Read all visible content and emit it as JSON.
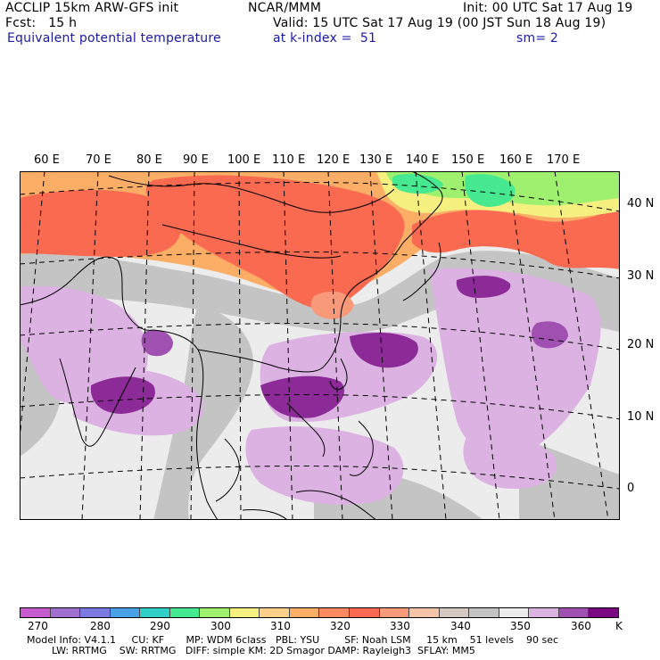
{
  "header": {
    "left_line1": "ACCLIP 15km ARW-GFS init",
    "left_line2": "Fcst:   15 h",
    "center_line1": "NCAR/MMM",
    "right_line1": "Init: 00 UTC Sat 17 Aug 19",
    "valid_line": "Valid: 15 UTC Sat 17 Aug 19 (00 JST Sun 18 Aug 19)",
    "field_title": "Equivalent potential temperature",
    "level_text": "at k-index =  51",
    "smooth_text": "sm= 2"
  },
  "map": {
    "longitude_labels": [
      "60 E",
      "70 E",
      "80 E",
      "90 E",
      "100 E",
      "110 E",
      "120 E",
      "130 E",
      "140 E",
      "150 E",
      "160 E",
      "170 E"
    ],
    "latitude_labels": [
      "40 N",
      "30 N",
      "20 N",
      "10 N",
      "0"
    ],
    "colors": {
      "gray_dark": "#c4c4c4",
      "gray_light": "#ececec",
      "lavender": "#dcb2e2",
      "purple_mid": "#b070c0",
      "purple_dark": "#8c2a98",
      "orange_red": "#fa6a50",
      "orange": "#fcae66",
      "salmon": "#f89a7a",
      "green": "#46e890",
      "lightgreen": "#a0f070",
      "yellow": "#f6f080"
    }
  },
  "colorbar": {
    "unit": "K",
    "tick_labels": [
      "270",
      "280",
      "290",
      "300",
      "310",
      "320",
      "330",
      "340",
      "350",
      "360"
    ],
    "colors": [
      "#c85ad0",
      "#a070d0",
      "#7a7ae0",
      "#4aa2e6",
      "#30d0c8",
      "#46e890",
      "#a0f070",
      "#f6f080",
      "#fcd088",
      "#fcae66",
      "#fa8a62",
      "#fa6a50",
      "#f89a7a",
      "#f5c4a8",
      "#d4c8c0",
      "#c4c4c4",
      "#ececec",
      "#dcb2e2",
      "#a050b0",
      "#7a0880"
    ]
  },
  "footer": {
    "line1": "Model Info: V4.1.1     CU: KF       MP: WDM 6class   PBL: YSU        SF: Noah LSM     15 km    51 levels    90 sec",
    "line2": "        LW: RRTMG    SW: RRTMG   DIFF: simple KM: 2D Smagor DAMP: Rayleigh3  SFLAY: MM5"
  }
}
